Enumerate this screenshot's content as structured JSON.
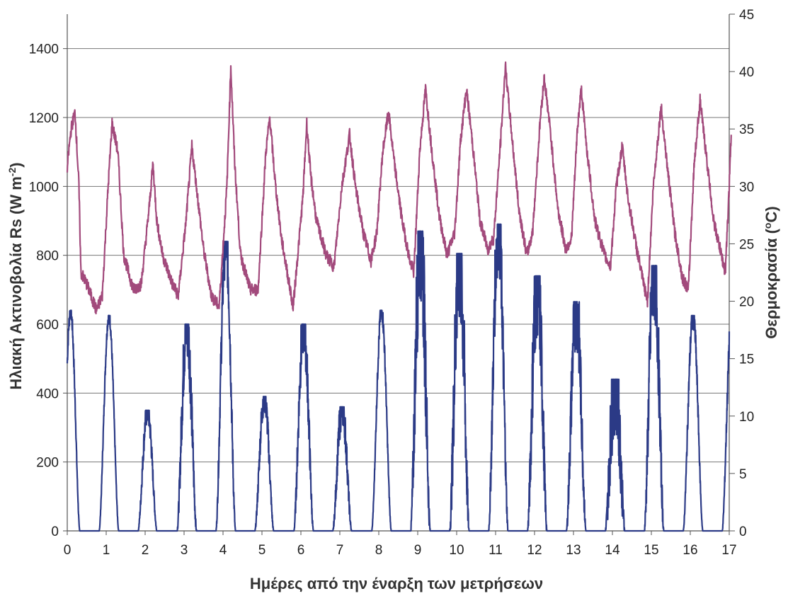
{
  "chart_data": {
    "type": "line",
    "title": "",
    "xlabel": "Ημέρες από την έναρξη των μετρήσεων",
    "ylabel_left": {
      "main": "Ηλιακή Ακτινοβολία Rs (W m",
      "sup": "-2",
      "end": ")"
    },
    "ylabel_right": {
      "main": "Θερμοκρασία (",
      "sup": "o",
      "end": "C)"
    },
    "xlim": [
      0,
      17
    ],
    "ylim_left": [
      0,
      1500
    ],
    "ylim_right": [
      0,
      45
    ],
    "x_ticks": [
      "0",
      "1",
      "2",
      "3",
      "4",
      "5",
      "6",
      "7",
      "8",
      "9",
      "10",
      "11",
      "12",
      "13",
      "14",
      "15",
      "16",
      "17"
    ],
    "y_left_ticks": [
      "0",
      "200",
      "400",
      "600",
      "800",
      "1000",
      "1200",
      "1400"
    ],
    "y_right_ticks": [
      "0",
      "5",
      "10",
      "15",
      "20",
      "25",
      "30",
      "35",
      "40",
      "45"
    ],
    "grid": "horizontal",
    "series": [
      {
        "axis": "left",
        "color": "#2b3a86",
        "days": [
          {
            "d": 0,
            "start": -0.15,
            "end": 0.32,
            "peak": 640,
            "noise": 25
          },
          {
            "d": 1,
            "start": 0.82,
            "end": 1.32,
            "peak": 625,
            "noise": 20
          },
          {
            "d": 2,
            "start": 1.82,
            "end": 2.3,
            "peak": 350,
            "noise": 40
          },
          {
            "d": 3,
            "start": 2.82,
            "end": 3.32,
            "peak": 600,
            "noise": 110
          },
          {
            "d": 4,
            "start": 3.82,
            "end": 4.32,
            "peak": 840,
            "noise": 90
          },
          {
            "d": 5,
            "start": 4.82,
            "end": 5.3,
            "peak": 390,
            "noise": 50
          },
          {
            "d": 6,
            "start": 5.82,
            "end": 6.32,
            "peak": 600,
            "noise": 90
          },
          {
            "d": 7,
            "start": 6.82,
            "end": 7.3,
            "peak": 360,
            "noise": 60
          },
          {
            "d": 8,
            "start": 7.82,
            "end": 8.32,
            "peak": 640,
            "noise": 30
          },
          {
            "d": 9,
            "start": 8.82,
            "end": 9.32,
            "peak": 870,
            "noise": 220
          },
          {
            "d": 10,
            "start": 9.82,
            "end": 10.32,
            "peak": 805,
            "noise": 220
          },
          {
            "d": 11,
            "start": 10.82,
            "end": 11.32,
            "peak": 890,
            "noise": 140
          },
          {
            "d": 12,
            "start": 11.82,
            "end": 12.32,
            "peak": 740,
            "noise": 180
          },
          {
            "d": 13,
            "start": 12.82,
            "end": 13.32,
            "peak": 665,
            "noise": 140
          },
          {
            "d": 14,
            "start": 13.82,
            "end": 14.32,
            "peak": 440,
            "noise": 160
          },
          {
            "d": 15,
            "start": 14.82,
            "end": 15.32,
            "peak": 770,
            "noise": 160
          },
          {
            "d": 16,
            "start": 15.82,
            "end": 16.32,
            "peak": 625,
            "noise": 40
          },
          {
            "d": 17,
            "start": 16.82,
            "end": 17.32,
            "peak": 640,
            "noise": 40
          }
        ]
      },
      {
        "axis": "right",
        "color": "#a24a7c",
        "points": [
          [
            0.0,
            31.5
          ],
          [
            0.05,
            33.5
          ],
          [
            0.1,
            35.0
          ],
          [
            0.2,
            36.5
          ],
          [
            0.3,
            30.0
          ],
          [
            0.35,
            22.5
          ],
          [
            0.5,
            21.5
          ],
          [
            0.75,
            19.2
          ],
          [
            0.9,
            20.5
          ],
          [
            1.05,
            30.0
          ],
          [
            1.15,
            35.5
          ],
          [
            1.3,
            33.0
          ],
          [
            1.45,
            24.0
          ],
          [
            1.7,
            21.0
          ],
          [
            1.9,
            21.5
          ],
          [
            2.1,
            28.0
          ],
          [
            2.2,
            32.0
          ],
          [
            2.3,
            27.0
          ],
          [
            2.45,
            24.0
          ],
          [
            2.7,
            21.5
          ],
          [
            2.85,
            20.5
          ],
          [
            3.05,
            27.0
          ],
          [
            3.2,
            33.5
          ],
          [
            3.35,
            29.0
          ],
          [
            3.5,
            24.5
          ],
          [
            3.7,
            20.5
          ],
          [
            3.9,
            19.5
          ],
          [
            4.1,
            30.0
          ],
          [
            4.2,
            40.5
          ],
          [
            4.3,
            32.0
          ],
          [
            4.45,
            24.0
          ],
          [
            4.7,
            21.0
          ],
          [
            4.9,
            21.0
          ],
          [
            5.1,
            33.0
          ],
          [
            5.2,
            36.0
          ],
          [
            5.35,
            30.0
          ],
          [
            5.5,
            25.5
          ],
          [
            5.7,
            21.5
          ],
          [
            5.8,
            19.5
          ],
          [
            6.05,
            29.0
          ],
          [
            6.15,
            35.5
          ],
          [
            6.25,
            31.0
          ],
          [
            6.4,
            27.0
          ],
          [
            6.65,
            24.0
          ],
          [
            6.85,
            23.0
          ],
          [
            7.05,
            30.0
          ],
          [
            7.25,
            34.5
          ],
          [
            7.4,
            30.0
          ],
          [
            7.6,
            26.0
          ],
          [
            7.8,
            23.5
          ],
          [
            7.95,
            26.0
          ],
          [
            8.1,
            33.0
          ],
          [
            8.25,
            36.5
          ],
          [
            8.4,
            32.0
          ],
          [
            8.6,
            27.0
          ],
          [
            8.8,
            23.5
          ],
          [
            8.9,
            22.5
          ],
          [
            9.05,
            33.0
          ],
          [
            9.2,
            38.5
          ],
          [
            9.35,
            33.5
          ],
          [
            9.55,
            27.5
          ],
          [
            9.75,
            24.0
          ],
          [
            9.95,
            26.0
          ],
          [
            10.1,
            34.0
          ],
          [
            10.25,
            38.5
          ],
          [
            10.4,
            34.0
          ],
          [
            10.6,
            27.0
          ],
          [
            10.8,
            24.5
          ],
          [
            10.95,
            25.5
          ],
          [
            11.15,
            35.0
          ],
          [
            11.25,
            40.5
          ],
          [
            11.4,
            35.0
          ],
          [
            11.6,
            28.0
          ],
          [
            11.8,
            24.0
          ],
          [
            11.95,
            26.0
          ],
          [
            12.15,
            36.0
          ],
          [
            12.25,
            39.5
          ],
          [
            12.4,
            35.0
          ],
          [
            12.6,
            28.0
          ],
          [
            12.8,
            24.5
          ],
          [
            12.95,
            25.5
          ],
          [
            13.1,
            35.0
          ],
          [
            13.2,
            38.5
          ],
          [
            13.35,
            33.0
          ],
          [
            13.55,
            27.0
          ],
          [
            13.8,
            24.0
          ],
          [
            13.95,
            23.0
          ],
          [
            14.1,
            30.0
          ],
          [
            14.25,
            33.5
          ],
          [
            14.4,
            29.0
          ],
          [
            14.6,
            25.0
          ],
          [
            14.8,
            21.5
          ],
          [
            14.9,
            20.0
          ],
          [
            15.05,
            30.0
          ],
          [
            15.25,
            37.0
          ],
          [
            15.4,
            32.0
          ],
          [
            15.6,
            26.0
          ],
          [
            15.8,
            22.0
          ],
          [
            15.95,
            21.0
          ],
          [
            16.1,
            32.0
          ],
          [
            16.25,
            37.5
          ],
          [
            16.4,
            33.0
          ],
          [
            16.6,
            27.0
          ],
          [
            16.8,
            24.0
          ],
          [
            16.9,
            22.5
          ],
          [
            17.0,
            30.0
          ],
          [
            17.05,
            34.5
          ]
        ]
      }
    ]
  }
}
